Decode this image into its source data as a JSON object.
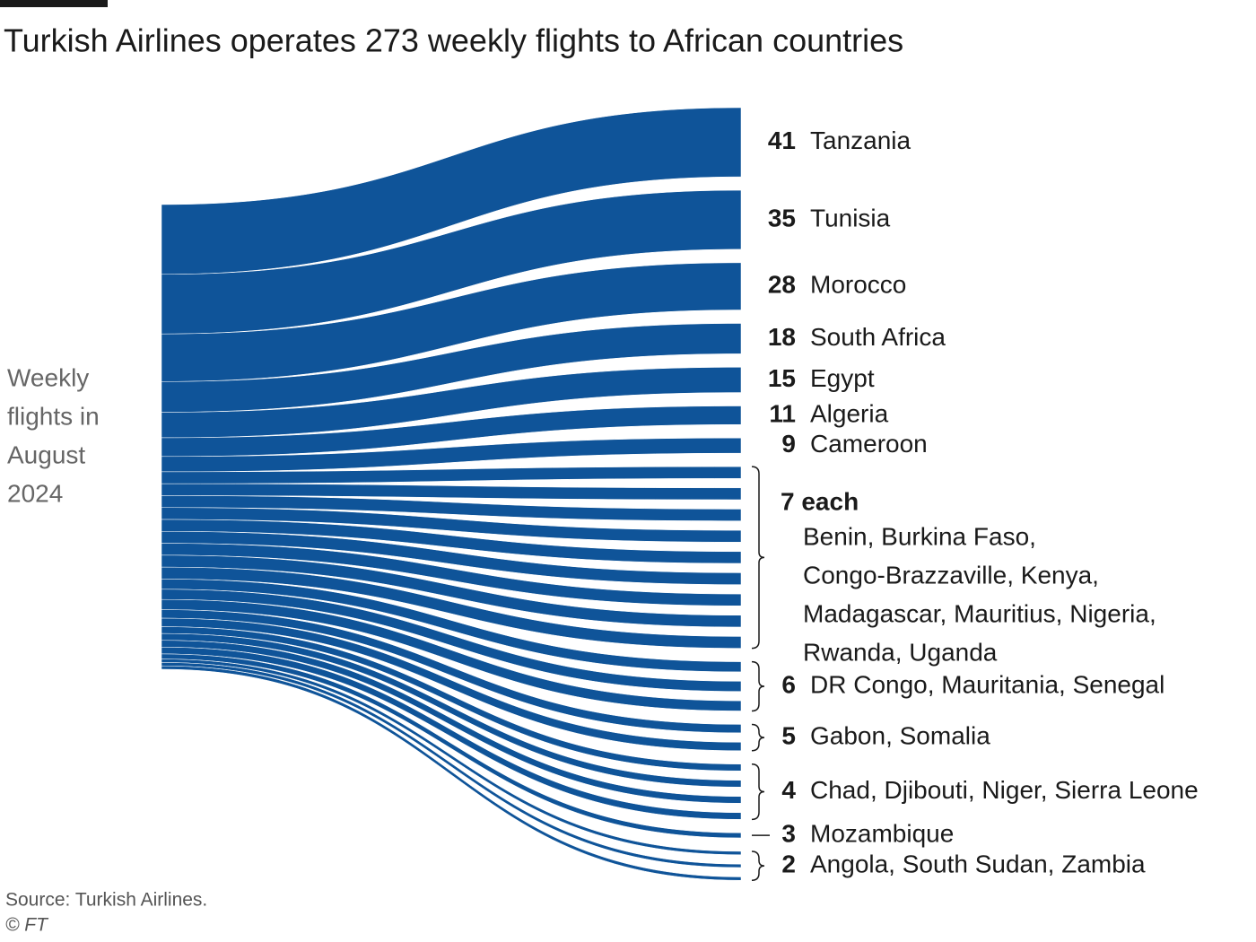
{
  "chart_data": {
    "type": "sankey",
    "title": "Turkish Airlines operates 273 weekly flights to African countries",
    "source_label_lines": [
      "Weekly",
      "flights in",
      "August",
      "2024"
    ],
    "source_note": "Source: Turkish Airlines.",
    "credit": "© FT",
    "color": "#0f5499",
    "groups": [
      {
        "values": [
          41
        ],
        "lines": [
          "Tanzania"
        ]
      },
      {
        "values": [
          35
        ],
        "lines": [
          "Tunisia"
        ]
      },
      {
        "values": [
          28
        ],
        "lines": [
          "Morocco"
        ]
      },
      {
        "values": [
          18
        ],
        "lines": [
          "South Africa"
        ]
      },
      {
        "values": [
          15
        ],
        "lines": [
          "Egypt"
        ]
      },
      {
        "values": [
          11
        ],
        "lines": [
          "Algeria"
        ]
      },
      {
        "values": [
          9
        ],
        "lines": [
          "Cameroon"
        ]
      },
      {
        "values": [
          7,
          7,
          7,
          7,
          7,
          7,
          7,
          7,
          7
        ],
        "value_label": "7 each",
        "lines": [
          "Benin, Burkina Faso,",
          "Congo-Brazzaville, Kenya,",
          "Madagascar, Mauritius, Nigeria,",
          "Rwanda, Uganda"
        ]
      },
      {
        "values": [
          6,
          6,
          6
        ],
        "lines": [
          "DR Congo, Mauritania, Senegal"
        ]
      },
      {
        "values": [
          5,
          5
        ],
        "lines": [
          "Gabon, Somalia"
        ]
      },
      {
        "values": [
          4,
          4,
          4,
          4
        ],
        "lines": [
          "Chad, Djibouti, Niger, Sierra Leone"
        ]
      },
      {
        "values": [
          3
        ],
        "lines": [
          "Mozambique"
        ]
      },
      {
        "values": [
          2,
          2,
          2
        ],
        "lines": [
          "Angola, South Sudan, Zambia"
        ]
      }
    ]
  }
}
